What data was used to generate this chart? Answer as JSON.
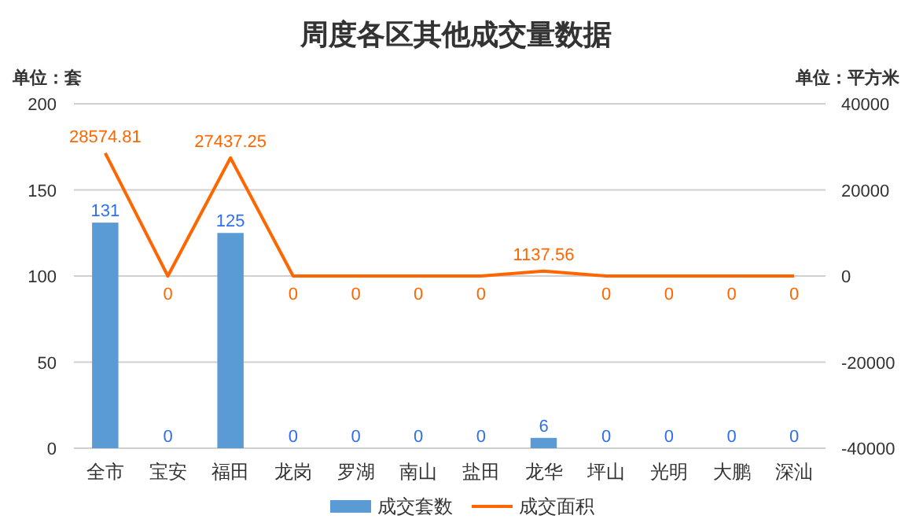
{
  "chart_data": {
    "type": "bar",
    "title": "周度各区其他成交量数据",
    "ylabel": "单位：套",
    "y2label": "单位：平方米",
    "categories": [
      "全市",
      "宝安",
      "福田",
      "龙岗",
      "罗湖",
      "南山",
      "盐田",
      "龙华",
      "坪山",
      "光明",
      "大鹏",
      "深汕"
    ],
    "series": [
      {
        "name": "成交套数",
        "color": "#5b9bd5",
        "values": [
          131,
          0,
          125,
          0,
          0,
          0,
          0,
          6,
          0,
          0,
          0,
          0
        ]
      },
      {
        "name": "成交面积",
        "type": "line",
        "axis": "y2",
        "color": "#ff6600",
        "values": [
          28574.81,
          0,
          27437.25,
          0,
          0,
          0,
          0,
          1137.56,
          0,
          0,
          0,
          0
        ]
      }
    ],
    "ylim": [
      0,
      200
    ],
    "yticks": [
      0,
      50,
      100,
      150,
      200
    ],
    "y2lim": [
      -40000,
      40000
    ],
    "y2ticks": [
      -40000,
      -20000,
      0,
      20000,
      40000
    ],
    "grid": "y",
    "legend": "bottom",
    "data_labels": true
  }
}
